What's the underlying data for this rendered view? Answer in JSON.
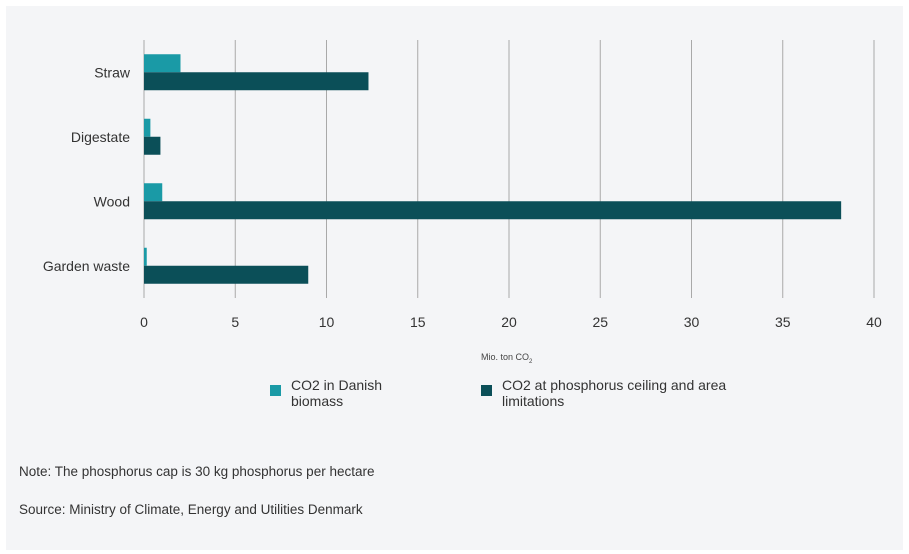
{
  "chart_data": {
    "type": "bar",
    "orientation": "horizontal",
    "categories": [
      "Straw",
      "Digestate",
      "Wood",
      "Garden waste"
    ],
    "series": [
      {
        "name": "CO2 in Danish biomass",
        "values": [
          2.0,
          0.35,
          1.0,
          0.15
        ],
        "color": "#1a9aa6"
      },
      {
        "name": "CO2 at phosphorus ceiling and area limitations",
        "values": [
          12.3,
          0.9,
          38.2,
          9.0
        ],
        "color": "#0b4f58"
      }
    ],
    "xlim": [
      0,
      40
    ],
    "xticks": [
      "0",
      "5",
      "10",
      "15",
      "20",
      "25",
      "30",
      "35",
      "40"
    ],
    "xticks_values": [
      0,
      5,
      10,
      15,
      20,
      25,
      30,
      35,
      40
    ],
    "grid": true,
    "legend_position": "bottom"
  },
  "unit_label": {
    "main": "Mio. ton CO",
    "sub": "2"
  },
  "legend": [
    {
      "line1": "CO2 in Danish",
      "line2": "biomass"
    },
    {
      "line1": "CO2 at phosphorus ceiling and area",
      "line2": "limitations"
    }
  ],
  "note": "Note: The phosphorus cap is 30 kg phosphorus per hectare",
  "source": "Source: Ministry of Climate, Energy and Utilities Denmark"
}
